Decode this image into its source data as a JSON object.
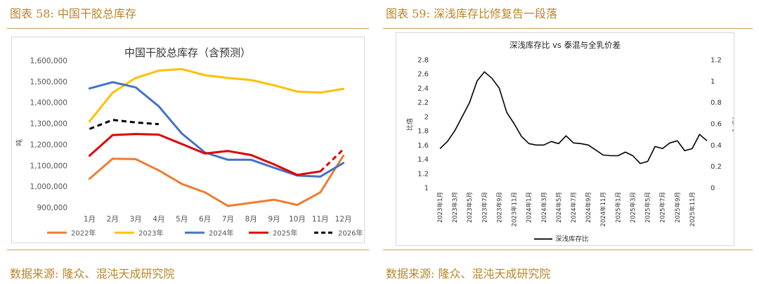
{
  "left": {
    "figure_title": "图表 58:  中国干胶总库存",
    "source": "数据来源:  隆众、混沌天成研究院"
  },
  "right": {
    "figure_title": "图表 59:  深浅库存比修复告一段落",
    "source": "数据来源:  隆众、混沌天成研究院"
  },
  "colors": {
    "brand": "#b8862b",
    "s2022": "#ed7d31",
    "s2023": "#ffc000",
    "s2024": "#4472c4",
    "s2025": "#e00000",
    "s2026": "#000000",
    "ratio": "#000000"
  },
  "chart_data": [
    {
      "type": "line",
      "title": "中国干胶总库存（含预测）",
      "ylabel": "吨",
      "categories": [
        "1月",
        "2月",
        "3月",
        "4月",
        "5月",
        "6月",
        "7月",
        "8月",
        "9月",
        "10月",
        "11月",
        "12月"
      ],
      "ylim": [
        900000,
        1600000
      ],
      "yticks": [
        900000,
        1000000,
        1100000,
        1200000,
        1300000,
        1400000,
        1500000,
        1600000
      ],
      "ytick_labels": [
        "900,000",
        "1,000,000",
        "1,100,000",
        "1,200,000",
        "1,300,000",
        "1,400,000",
        "1,500,000",
        "1,600,000"
      ],
      "series": [
        {
          "name": "2022年",
          "color_key": "s2022",
          "dash": false,
          "values": [
            1040000,
            1135000,
            1133000,
            1080000,
            1015000,
            975000,
            910000,
            925000,
            940000,
            915000,
            975000,
            1150000
          ]
        },
        {
          "name": "2023年",
          "color_key": "s2023",
          "dash": false,
          "values": [
            1313000,
            1450000,
            1520000,
            1555000,
            1562000,
            1533000,
            1520000,
            1510000,
            1485000,
            1455000,
            1450000,
            1468000
          ]
        },
        {
          "name": "2024年",
          "color_key": "s2024",
          "dash": false,
          "values": [
            1470000,
            1500000,
            1475000,
            1385000,
            1255000,
            1165000,
            1130000,
            1130000,
            1092000,
            1055000,
            1050000,
            1115000
          ]
        },
        {
          "name": "2025年",
          "color_key": "s2025",
          "dash": false,
          "values": [
            1150000,
            1248000,
            1253000,
            1250000,
            1205000,
            1160000,
            1172000,
            1153000,
            1108000,
            1058000,
            1075000,
            null
          ]
        },
        {
          "name": "2025年预测",
          "color_key": "s2025",
          "dash": true,
          "legend": false,
          "values": [
            null,
            null,
            null,
            null,
            null,
            null,
            null,
            null,
            null,
            null,
            1075000,
            1180000
          ]
        },
        {
          "name": "2026年",
          "color_key": "s2026",
          "dash": true,
          "values": [
            1277000,
            1320000,
            1308000,
            1300000,
            null,
            null,
            null,
            null,
            null,
            null,
            null,
            null
          ]
        }
      ]
    },
    {
      "type": "line",
      "title": "深浅库存比 vs 泰混与全乳价差",
      "ylabel": "比值",
      "y2label": "元/吨",
      "ylim": [
        1,
        2.8
      ],
      "yticks": [
        1,
        1.2,
        1.4,
        1.6,
        1.8,
        2,
        2.2,
        2.4,
        2.6,
        2.8
      ],
      "y2lim": [
        0,
        1.2
      ],
      "y2ticks": [
        0,
        0.2,
        0.4,
        0.6,
        0.8,
        1,
        1.2
      ],
      "x_labels": [
        "2023年1月",
        "2023年3月",
        "2023年5月",
        "2023年7月",
        "2023年9月",
        "2023年11月",
        "2024年1月",
        "2024年3月",
        "2024年5月",
        "2024年7月",
        "2024年9月",
        "2024年11月",
        "2025年1月",
        "2025年3月",
        "2025年5月",
        "2025年7月",
        "2025年9月",
        "2025年11月"
      ],
      "series": [
        {
          "name": "深浅库存比",
          "color_key": "ratio",
          "values": [
            1.55,
            1.65,
            1.8,
            2.0,
            2.2,
            2.5,
            2.63,
            2.54,
            2.4,
            2.06,
            1.9,
            1.72,
            1.62,
            1.6,
            1.6,
            1.65,
            1.62,
            1.73,
            1.63,
            1.62,
            1.6,
            1.53,
            1.46,
            1.45,
            1.45,
            1.5,
            1.45,
            1.34,
            1.37,
            1.58,
            1.55,
            1.63,
            1.66,
            1.52,
            1.55,
            1.75,
            1.66
          ]
        }
      ]
    }
  ]
}
